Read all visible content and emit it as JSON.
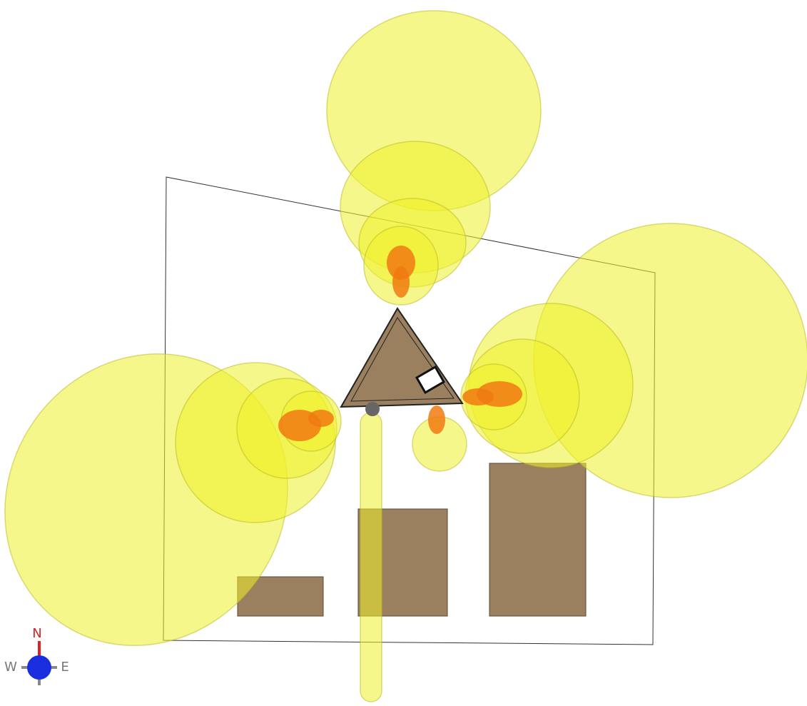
{
  "compass": {
    "north": "N",
    "west": "W",
    "east": "E"
  }
}
